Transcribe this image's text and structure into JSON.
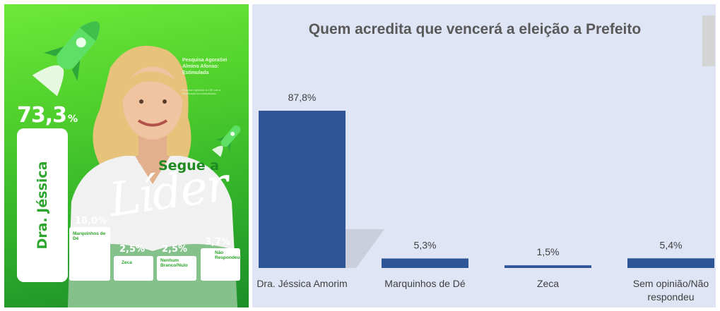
{
  "poster": {
    "main_candidate": "Dra. Jéssica",
    "main_value": "73,3",
    "main_unit": "%",
    "survey_title": "Pesquisa AgoraSei Almino Afonso: Estimulada",
    "survey_note": "Pesquisa registrada no TSE com a identificação dos entrevistados.",
    "slogan_top": "Segue a",
    "slogan_bottom": "Líder",
    "others": [
      {
        "value": "18,0%",
        "label": "Marquinhos de Dé",
        "share": 18.0
      },
      {
        "value": "2,5%",
        "label": "Zeca",
        "share": 2.5
      },
      {
        "value": "2,5%",
        "label": "Nenhum Branco/Nulo",
        "share": 2.5
      },
      {
        "value": "3,7%",
        "label": "Não Respondeu",
        "share": 3.7
      }
    ],
    "colors": {
      "green": "#4fcf2c",
      "dark_green": "#1d8d2a",
      "text_green": "#2ba52b"
    }
  },
  "chart_data": {
    "type": "bar",
    "title": "Quem acredita que vencerá a eleição a Prefeito",
    "categories": [
      "Dra. Jéssica Amorim",
      "Marquinhos de Dé",
      "Zeca",
      "Sem opinião/Não respondeu"
    ],
    "category_lines": [
      [
        "Dra. Jéssica Amorim"
      ],
      [
        "Marquinhos de Dé"
      ],
      [
        "Zeca"
      ],
      [
        "Sem opinião/Não",
        "respondeu"
      ]
    ],
    "values": [
      87.8,
      5.3,
      1.5,
      5.4
    ],
    "labels": [
      "87,8%",
      "5,3%",
      "1,5%",
      "5,4%"
    ],
    "ylim": [
      0,
      100
    ],
    "grid": false,
    "bar_color": "#2e5597",
    "background": "#dfe5f4"
  }
}
